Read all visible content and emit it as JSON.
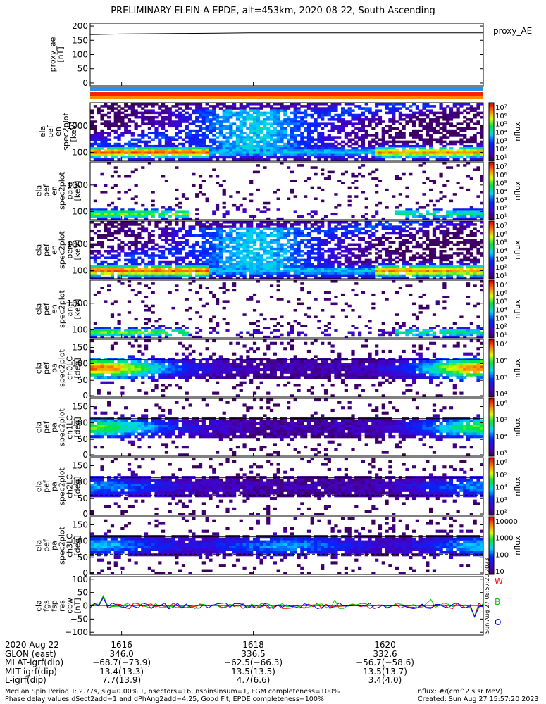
{
  "title": "PRELIMINARY ELFIN-A EPDE, alt=453km, 2020-08-22, South Ascending",
  "colors": {
    "band_top": "#2a8ff0",
    "band_mid": "#ff2200",
    "band_bottom": "#ff8800",
    "trace_w": "#ff0000",
    "trace_b": "#00cc00",
    "trace_o": "#0000ff"
  },
  "chart_data": [
    {
      "type": "line",
      "name": "proxy_ae",
      "legend": "proxy_AE",
      "ylabel": [
        "proxy_ae",
        "[nT]"
      ],
      "ylim": [
        -10,
        210
      ],
      "yticks": [
        "200",
        "150",
        "100",
        "50",
        "0"
      ],
      "x": [
        16.05,
        16.5,
        17.0,
        17.5,
        18.0,
        18.5,
        19.0,
        19.5,
        20.0,
        20.5,
        21.0,
        21.5,
        22.1
      ],
      "y": [
        170,
        172,
        173,
        174,
        175,
        176,
        176,
        176,
        176,
        176,
        176,
        176,
        176
      ]
    },
    {
      "type": "heatmap",
      "name": "energy_spectrogram_1",
      "ylabel": [
        "ela",
        "pef",
        "en",
        "spec2plot",
        "[keV]"
      ],
      "yticks": [
        "1000",
        "100"
      ],
      "colorbar": {
        "label": "nflux",
        "ticks": [
          "10⁷",
          "10⁶",
          "10⁵",
          "10⁴",
          "10³",
          "10²",
          "10¹"
        ]
      }
    },
    {
      "type": "heatmap",
      "name": "energy_spectrogram_2",
      "ylabel": [
        "ela",
        "pef",
        "en",
        "spec2plot",
        "para",
        "[keV]"
      ],
      "yticks": [
        "1000",
        "100"
      ],
      "colorbar": {
        "label": "nflux",
        "ticks": [
          "10⁷",
          "10⁶",
          "10⁵",
          "10⁴",
          "10³",
          "10²",
          "10¹"
        ]
      }
    },
    {
      "type": "heatmap",
      "name": "energy_spectrogram_3",
      "ylabel": [
        "ela",
        "pef",
        "en",
        "spec2plot",
        "perp",
        "[keV]"
      ],
      "yticks": [
        "1000",
        "100"
      ],
      "colorbar": {
        "label": "nflux",
        "ticks": [
          "10⁷",
          "10⁶",
          "10⁵",
          "10⁴",
          "10³",
          "10²",
          "10¹"
        ]
      }
    },
    {
      "type": "heatmap",
      "name": "energy_spectrogram_4",
      "ylabel": [
        "ela",
        "pef",
        "en",
        "spec2plot",
        "anti",
        "[keV]"
      ],
      "yticks": [
        "1000",
        "100"
      ],
      "colorbar": {
        "label": "nflux",
        "ticks": [
          "10⁷",
          "10⁶",
          "10⁵",
          "10⁴",
          "10³",
          "10²",
          "10¹"
        ]
      }
    },
    {
      "type": "heatmap",
      "name": "pitch_angle_ch0",
      "ylabel": [
        "ela",
        "pef",
        "pa",
        "spec2plot",
        "ch0LC",
        "[deg]"
      ],
      "yticks": [
        "150",
        "100",
        "50",
        "0"
      ],
      "colorbar": {
        "label": "nflux",
        "ticks": [
          "10⁷",
          "10⁶",
          "10⁵",
          "10⁴"
        ]
      }
    },
    {
      "type": "heatmap",
      "name": "pitch_angle_ch1",
      "ylabel": [
        "ela",
        "pef",
        "pa",
        "spec2plot",
        "ch1LC",
        "[deg]"
      ],
      "yticks": [
        "150",
        "100",
        "50",
        "0"
      ],
      "colorbar": {
        "label": "nflux",
        "ticks": [
          "10⁶",
          "10⁵",
          "10⁴",
          "10³"
        ]
      }
    },
    {
      "type": "heatmap",
      "name": "pitch_angle_ch2",
      "ylabel": [
        "ela",
        "pef",
        "pa",
        "spec2plot",
        "ch2LC",
        "[deg]"
      ],
      "yticks": [
        "150",
        "100",
        "50",
        "0"
      ],
      "colorbar": {
        "label": "nflux",
        "ticks": [
          "10⁶",
          "10⁵",
          "10⁴",
          "10³",
          "10²"
        ]
      }
    },
    {
      "type": "heatmap",
      "name": "pitch_angle_ch3",
      "ylabel": [
        "ela",
        "pef",
        "pa",
        "spec2plot",
        "ch3LC",
        "[deg]"
      ],
      "yticks": [
        "150",
        "100",
        "50",
        "0"
      ],
      "colorbar": {
        "label": "nflux",
        "ticks": [
          "10000",
          "1000",
          "100",
          "10"
        ]
      }
    },
    {
      "type": "line",
      "name": "fgs_residual",
      "ylabel": [
        "ela",
        "fgs",
        "fsp",
        "res",
        "obw",
        "[nT]"
      ],
      "ylim": [
        -110,
        110
      ],
      "yticks": [
        "100",
        "50",
        "0",
        "−50",
        "−100"
      ],
      "legend": [
        "W",
        "B",
        "O"
      ],
      "stamp": "Sun Aug 27 08:57:20 2023"
    }
  ],
  "xaxis": {
    "labels": [
      "2020 Aug 22",
      "GLON (east)",
      "MLAT-igrf(dip)",
      "MLT-igrf(dip)",
      "L-igrf(dip)"
    ],
    "ticks": [
      {
        "time": "1616",
        "glon": "346.0",
        "mlat": "−68.7(−73.9)",
        "mlt": "13.4(13.3)",
        "l": "7.7(13.9)"
      },
      {
        "time": "1618",
        "glon": "336.5",
        "mlat": "−62.5(−66.3)",
        "mlt": "13.5(13.5)",
        "l": "4.7(6.6)"
      },
      {
        "time": "1620",
        "glon": "332.6",
        "mlat": "−56.7(−58.6)",
        "mlt": "13.5(13.7)",
        "l": "3.4(4.0)"
      }
    ]
  },
  "footer": {
    "line1": "Median Spin Period T: 2.77s, sig=0.00% T, nsectors=16, nspinsinsum=1, FGM completeness=100%",
    "line2": "Phase delay values dSect2add=1 and dPhAng2add=4.25, Good Fit, EPDE completeness=100%",
    "units": "nflux: #/(cm^2 s sr MeV)",
    "created": "Created: Sun Aug 27 15:57:20 2023"
  }
}
